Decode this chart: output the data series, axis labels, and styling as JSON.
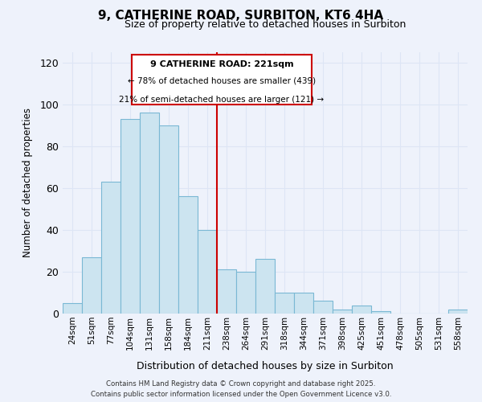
{
  "title": "9, CATHERINE ROAD, SURBITON, KT6 4HA",
  "subtitle": "Size of property relative to detached houses in Surbiton",
  "xlabel": "Distribution of detached houses by size in Surbiton",
  "ylabel": "Number of detached properties",
  "categories": [
    "24sqm",
    "51sqm",
    "77sqm",
    "104sqm",
    "131sqm",
    "158sqm",
    "184sqm",
    "211sqm",
    "238sqm",
    "264sqm",
    "291sqm",
    "318sqm",
    "344sqm",
    "371sqm",
    "398sqm",
    "425sqm",
    "451sqm",
    "478sqm",
    "505sqm",
    "531sqm",
    "558sqm"
  ],
  "values": [
    5,
    27,
    63,
    93,
    96,
    90,
    56,
    40,
    21,
    20,
    26,
    10,
    10,
    6,
    2,
    4,
    1,
    0,
    0,
    0,
    2
  ],
  "bar_color": "#cce4f0",
  "bar_edge_color": "#7ab8d4",
  "vline_color": "#cc0000",
  "vline_x_index": 7,
  "annotation_box_color": "#cc0000",
  "annotation_title": "9 CATHERINE ROAD: 221sqm",
  "annotation_line1": "← 78% of detached houses are smaller (439)",
  "annotation_line2": "21% of semi-detached houses are larger (121) →",
  "ylim": [
    0,
    125
  ],
  "yticks": [
    0,
    20,
    40,
    60,
    80,
    100,
    120
  ],
  "footer_line1": "Contains HM Land Registry data © Crown copyright and database right 2025.",
  "footer_line2": "Contains public sector information licensed under the Open Government Licence v3.0.",
  "background_color": "#eef2fb",
  "grid_color": "#dde5f5"
}
